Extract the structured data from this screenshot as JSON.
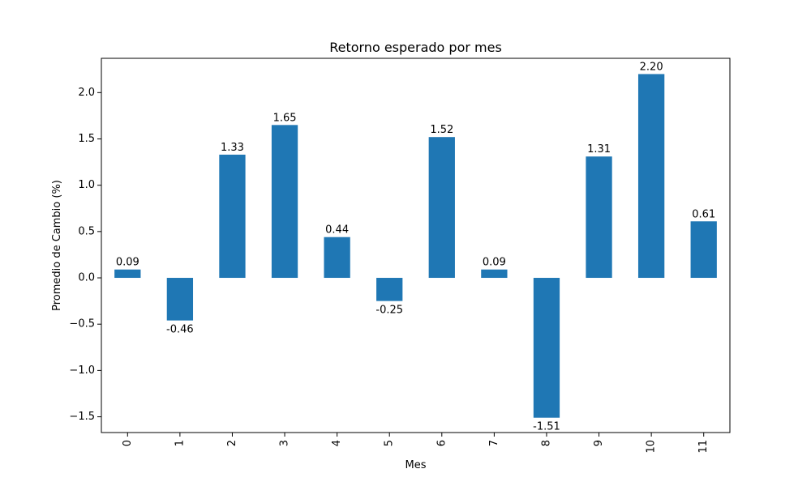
{
  "chart_data": {
    "type": "bar",
    "title": "Retorno esperado por mes",
    "xlabel": "Mes",
    "ylabel": "Promedio de Cambio (%)",
    "categories": [
      "0",
      "1",
      "2",
      "3",
      "4",
      "5",
      "6",
      "7",
      "8",
      "9",
      "10",
      "11"
    ],
    "values": [
      0.09,
      -0.46,
      1.33,
      1.65,
      0.44,
      -0.25,
      1.52,
      0.09,
      -1.51,
      1.31,
      2.2,
      0.61
    ],
    "data_labels": [
      "0.09",
      "-0.46",
      "1.33",
      "1.65",
      "0.44",
      "-0.25",
      "1.52",
      "0.09",
      "-1.51",
      "1.31",
      "2.20",
      "0.61"
    ],
    "ylim": [
      -1.67,
      2.37
    ],
    "yticks": [
      -1.5,
      -1.0,
      -0.5,
      0.0,
      0.5,
      1.0,
      1.5,
      2.0
    ],
    "ytick_labels": [
      "−1.5",
      "−1.0",
      "−0.5",
      "0.0",
      "0.5",
      "1.0",
      "1.5",
      "2.0"
    ],
    "x_tick_rotation": "vertical",
    "grid": false,
    "legend": "none",
    "bar_color": "#1f77b4"
  }
}
